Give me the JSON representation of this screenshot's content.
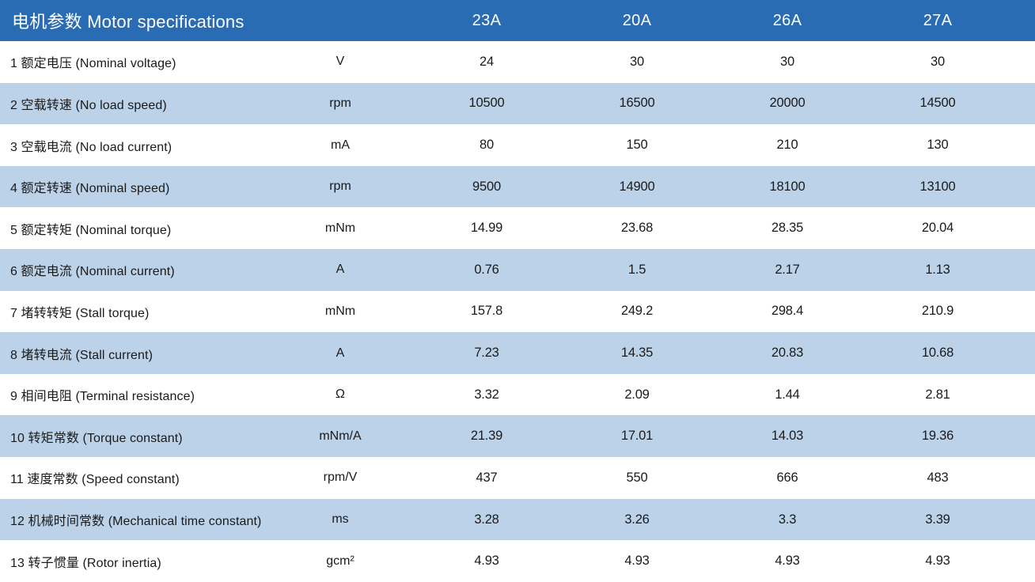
{
  "header": {
    "title": "电机参数  Motor specifications",
    "columns": [
      "23A",
      "20A",
      "26A",
      "27A"
    ]
  },
  "rows": [
    {
      "label": "1 额定电压 (Nominal voltage)",
      "unit": "V",
      "values": [
        "24",
        "30",
        "30",
        "30"
      ]
    },
    {
      "label": "2 空载转速 (No load speed)",
      "unit": "rpm",
      "values": [
        "10500",
        "16500",
        "20000",
        "14500"
      ]
    },
    {
      "label": "3 空载电流 (No load current)",
      "unit": "mA",
      "values": [
        "80",
        "150",
        "210",
        "130"
      ]
    },
    {
      "label": "4 额定转速 (Nominal speed)",
      "unit": "rpm",
      "values": [
        "9500",
        "14900",
        "18100",
        "13100"
      ]
    },
    {
      "label": "5 额定转矩 (Nominal torque)",
      "unit": "mNm",
      "values": [
        "14.99",
        "23.68",
        "28.35",
        "20.04"
      ]
    },
    {
      "label": "6 额定电流 (Nominal current)",
      "unit": "A",
      "values": [
        "0.76",
        "1.5",
        "2.17",
        "1.13"
      ]
    },
    {
      "label": "7 堵转转矩 (Stall torque)",
      "unit": "mNm",
      "values": [
        "157.8",
        "249.2",
        "298.4",
        "210.9"
      ]
    },
    {
      "label": "8 堵转电流 (Stall current)",
      "unit": "A",
      "values": [
        "7.23",
        "14.35",
        "20.83",
        "10.68"
      ]
    },
    {
      "label": "9 相间电阻 (Terminal resistance)",
      "unit": "Ω",
      "values": [
        "3.32",
        "2.09",
        "1.44",
        "2.81"
      ]
    },
    {
      "label": "10 转矩常数 (Torque constant)",
      "unit": "mNm/A",
      "values": [
        "21.39",
        "17.01",
        "14.03",
        "19.36"
      ]
    },
    {
      "label": "11 速度常数 (Speed constant)",
      "unit": "rpm/V",
      "values": [
        "437",
        "550",
        "666",
        "483"
      ]
    },
    {
      "label": "12 机械时间常数 (Mechanical time constant)",
      "unit": "ms",
      "values": [
        "3.28",
        "3.26",
        "3.3",
        "3.39"
      ]
    },
    {
      "label": "13 转子惯量 (Rotor inertia)",
      "unit": "gcm²",
      "values": [
        "4.93",
        "4.93",
        "4.93",
        "4.93"
      ]
    }
  ],
  "colors": {
    "header_bg": "#2a6cb4",
    "alt_row_bg": "#bcd2e8",
    "header_text": "#ffffff",
    "body_text": "#1a1a1a"
  }
}
